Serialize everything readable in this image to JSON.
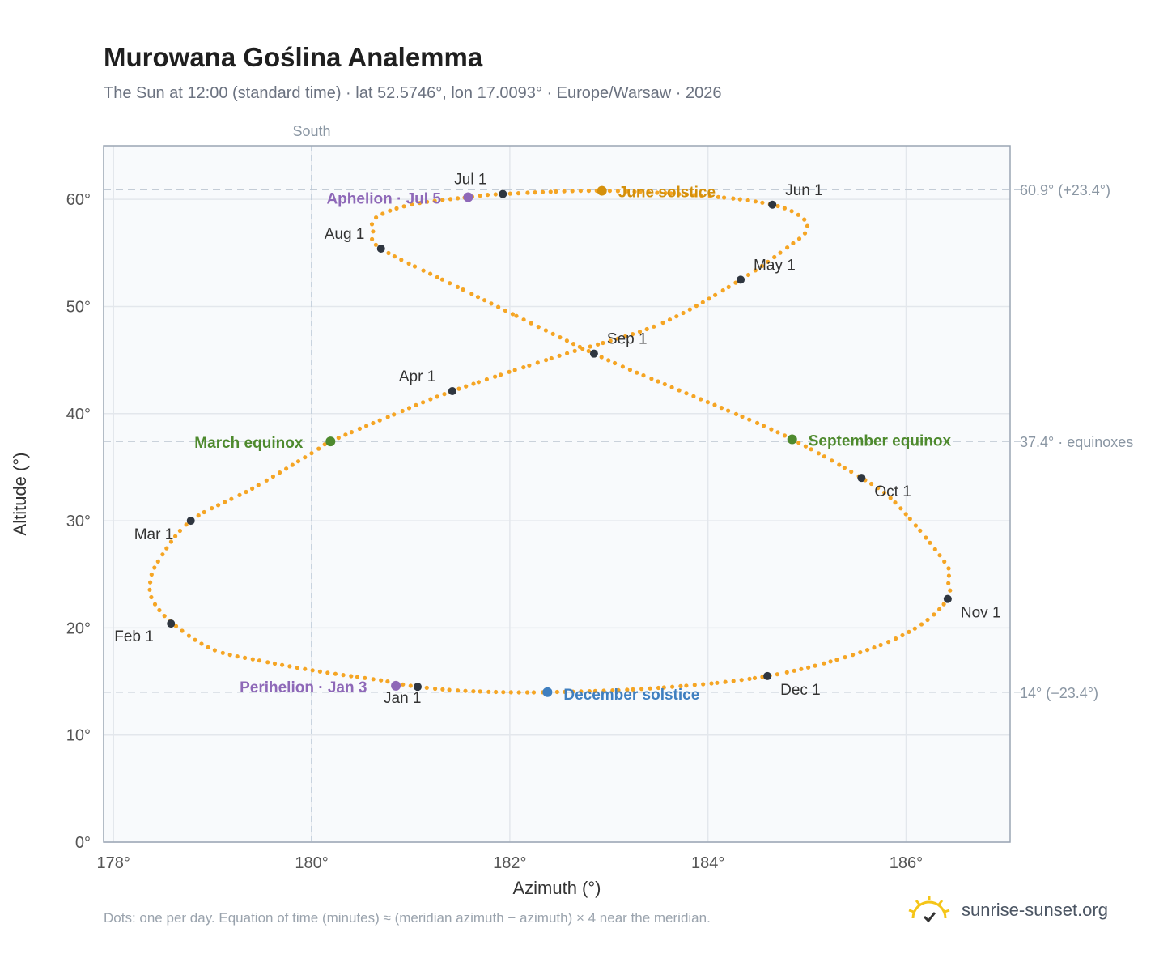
{
  "title": "Murowana Goślina Analemma",
  "subtitle": "The Sun at 12:00 (standard time) · lat 52.5746°, lon 17.0093° · Europe/Warsaw · 2026",
  "footnote": "Dots: one per day. Equation of time (minutes) ≈ (meridian azimuth − azimuth) × 4 near the meridian.",
  "brand": {
    "text": "sunrise-sunset.org",
    "icon": "sun-logo-icon",
    "color": "#f5c518"
  },
  "chart_data": {
    "type": "scatter",
    "xlabel": "Azimuth (°)",
    "ylabel": "Altitude (°)",
    "xlim": [
      177.9,
      187.05
    ],
    "ylim": [
      0,
      65
    ],
    "xticks": [
      178,
      180,
      182,
      184,
      186
    ],
    "xtick_labels": [
      "178°",
      "180°",
      "182°",
      "184°",
      "186°"
    ],
    "yticks": [
      0,
      10,
      20,
      30,
      40,
      50,
      60
    ],
    "ytick_labels": [
      "0°",
      "10°",
      "20°",
      "30°",
      "40°",
      "50°",
      "60°"
    ],
    "grid": true,
    "meridian": {
      "azimuth": 180,
      "label": "South"
    },
    "reference_lines": [
      {
        "altitude": 60.9,
        "label": "60.9° (+23.4°)"
      },
      {
        "altitude": 37.4,
        "label": "37.4° · equinoxes"
      },
      {
        "altitude": 14.0,
        "label": "14° (−23.4°)"
      }
    ],
    "series": [
      {
        "name": "",
        "color": "#f5a524",
        "points": [
          [
            181.07,
            14.5
          ],
          [
            180.7,
            15.1
          ],
          [
            180.1,
            15.9
          ],
          [
            179.5,
            16.9
          ],
          [
            179.0,
            18.0
          ],
          [
            178.6,
            20.4
          ],
          [
            178.4,
            22.5
          ],
          [
            178.37,
            24.2
          ],
          [
            178.45,
            26.2
          ],
          [
            178.78,
            30.0
          ],
          [
            179.4,
            33.0
          ],
          [
            180.0,
            36.3
          ],
          [
            180.19,
            37.4
          ],
          [
            180.8,
            39.8
          ],
          [
            181.42,
            42.1
          ],
          [
            182.5,
            45.4
          ],
          [
            183.5,
            48.3
          ],
          [
            184.33,
            52.5
          ],
          [
            184.8,
            55.5
          ],
          [
            184.99,
            57.0
          ],
          [
            184.95,
            58.3
          ],
          [
            184.65,
            59.5
          ],
          [
            184.0,
            60.3
          ],
          [
            182.93,
            60.8
          ],
          [
            181.93,
            60.5
          ],
          [
            181.58,
            60.2
          ],
          [
            181.0,
            59.5
          ],
          [
            180.65,
            58.3
          ],
          [
            180.62,
            57.0
          ],
          [
            180.7,
            55.4
          ],
          [
            181.5,
            51.7
          ],
          [
            182.85,
            45.6
          ],
          [
            183.6,
            42.6
          ],
          [
            184.3,
            39.9
          ],
          [
            184.85,
            37.6
          ],
          [
            185.55,
            34.0
          ],
          [
            185.9,
            31.6
          ],
          [
            186.4,
            26.0
          ],
          [
            186.42,
            24.5
          ],
          [
            186.42,
            22.7
          ],
          [
            186.1,
            20.0
          ],
          [
            185.5,
            17.6
          ],
          [
            184.6,
            15.5
          ],
          [
            183.5,
            14.4
          ],
          [
            182.38,
            14.0
          ],
          [
            181.6,
            14.1
          ],
          [
            181.07,
            14.5
          ]
        ]
      }
    ],
    "month_markers": [
      {
        "label": "Jan 1",
        "az": 181.07,
        "alt": 14.5,
        "label_dx": -42,
        "label_dy": 20
      },
      {
        "label": "Feb 1",
        "az": 178.58,
        "alt": 20.4,
        "label_dx": -70,
        "label_dy": 22
      },
      {
        "label": "Mar 1",
        "az": 178.78,
        "alt": 30.0,
        "label_dx": -70,
        "label_dy": 23
      },
      {
        "label": "Apr 1",
        "az": 181.42,
        "alt": 42.1,
        "label_dx": -66,
        "label_dy": -12
      },
      {
        "label": "May 1",
        "az": 184.33,
        "alt": 52.5,
        "label_dx": 16,
        "label_dy": -12
      },
      {
        "label": "Jun 1",
        "az": 184.65,
        "alt": 59.5,
        "label_dx": 16,
        "label_dy": -12
      },
      {
        "label": "Jul 1",
        "az": 181.93,
        "alt": 60.5,
        "label_dx": -60,
        "label_dy": -12
      },
      {
        "label": "Aug 1",
        "az": 180.7,
        "alt": 55.4,
        "label_dx": -70,
        "label_dy": -12
      },
      {
        "label": "Sep 1",
        "az": 182.85,
        "alt": 45.6,
        "label_dx": 16,
        "label_dy": -12
      },
      {
        "label": "Oct 1",
        "az": 185.55,
        "alt": 34.0,
        "label_dx": 16,
        "label_dy": 23
      },
      {
        "label": "Nov 1",
        "az": 186.42,
        "alt": 22.7,
        "label_dx": 16,
        "label_dy": 23
      },
      {
        "label": "Dec 1",
        "az": 184.6,
        "alt": 15.5,
        "label_dx": 16,
        "label_dy": 23
      }
    ],
    "event_markers": [
      {
        "label": "June solstice",
        "az": 182.93,
        "alt": 60.8,
        "color": "#d4900c",
        "label_dx": 20,
        "label_dy": 8
      },
      {
        "label": "December solstice",
        "az": 182.38,
        "alt": 14.0,
        "color": "#3f7fc0",
        "label_dx": 20,
        "label_dy": 9
      },
      {
        "label": "March equinox",
        "az": 180.19,
        "alt": 37.4,
        "color": "#4e8a2e",
        "label_dx": -168,
        "label_dy": 8
      },
      {
        "label": "September equinox",
        "az": 184.85,
        "alt": 37.6,
        "color": "#4e8a2e",
        "label_dx": 20,
        "label_dy": 8
      },
      {
        "label": "Aphelion · Jul 5",
        "az": 181.58,
        "alt": 60.2,
        "color": "#8e68b8",
        "label_dx": -175,
        "label_dy": 8
      },
      {
        "label": "Perihelion · Jan 3",
        "az": 180.85,
        "alt": 14.6,
        "color": "#8e68b8",
        "label_dx": -193,
        "label_dy": 8
      }
    ]
  }
}
